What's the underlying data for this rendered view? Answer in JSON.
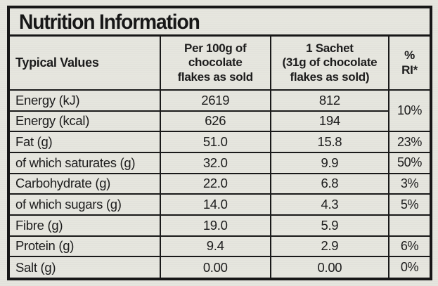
{
  "title": "Nutrition Information",
  "table": {
    "headers": {
      "typical_values": "Typical Values",
      "per_100g": "Per 100g of\nchocolate\nflakes as sold",
      "sachet": "1 Sachet\n(31g of chocolate\nflakes as sold)",
      "ri": "%\nRI*"
    },
    "rows": [
      {
        "label": "Energy (kJ)",
        "per_100g": "2619",
        "sachet": "812",
        "ri": "10%",
        "ri_rowspan": 2
      },
      {
        "label": "Energy (kcal)",
        "per_100g": "626",
        "sachet": "194"
      },
      {
        "label": "Fat (g)",
        "per_100g": "51.0",
        "sachet": "15.8",
        "ri": "23%"
      },
      {
        "label": "of which saturates (g)",
        "per_100g": "32.0",
        "sachet": "9.9",
        "ri": "50%"
      },
      {
        "label": "Carbohydrate (g)",
        "per_100g": "22.0",
        "sachet": "6.8",
        "ri": "3%"
      },
      {
        "label": "of which sugars (g)",
        "per_100g": "14.0",
        "sachet": "4.3",
        "ri": "5%"
      },
      {
        "label": "Fibre (g)",
        "per_100g": "19.0",
        "sachet": "5.9",
        "ri": ""
      },
      {
        "label": "Protein (g)",
        "per_100g": "9.4",
        "sachet": "2.9",
        "ri": "6%"
      },
      {
        "label": "Salt (g)",
        "per_100g": "0.00",
        "sachet": "0.00",
        "ri": "0%"
      }
    ]
  },
  "colors": {
    "background": "#e6e5de",
    "border": "#171717",
    "text": "#1c1c1c"
  }
}
